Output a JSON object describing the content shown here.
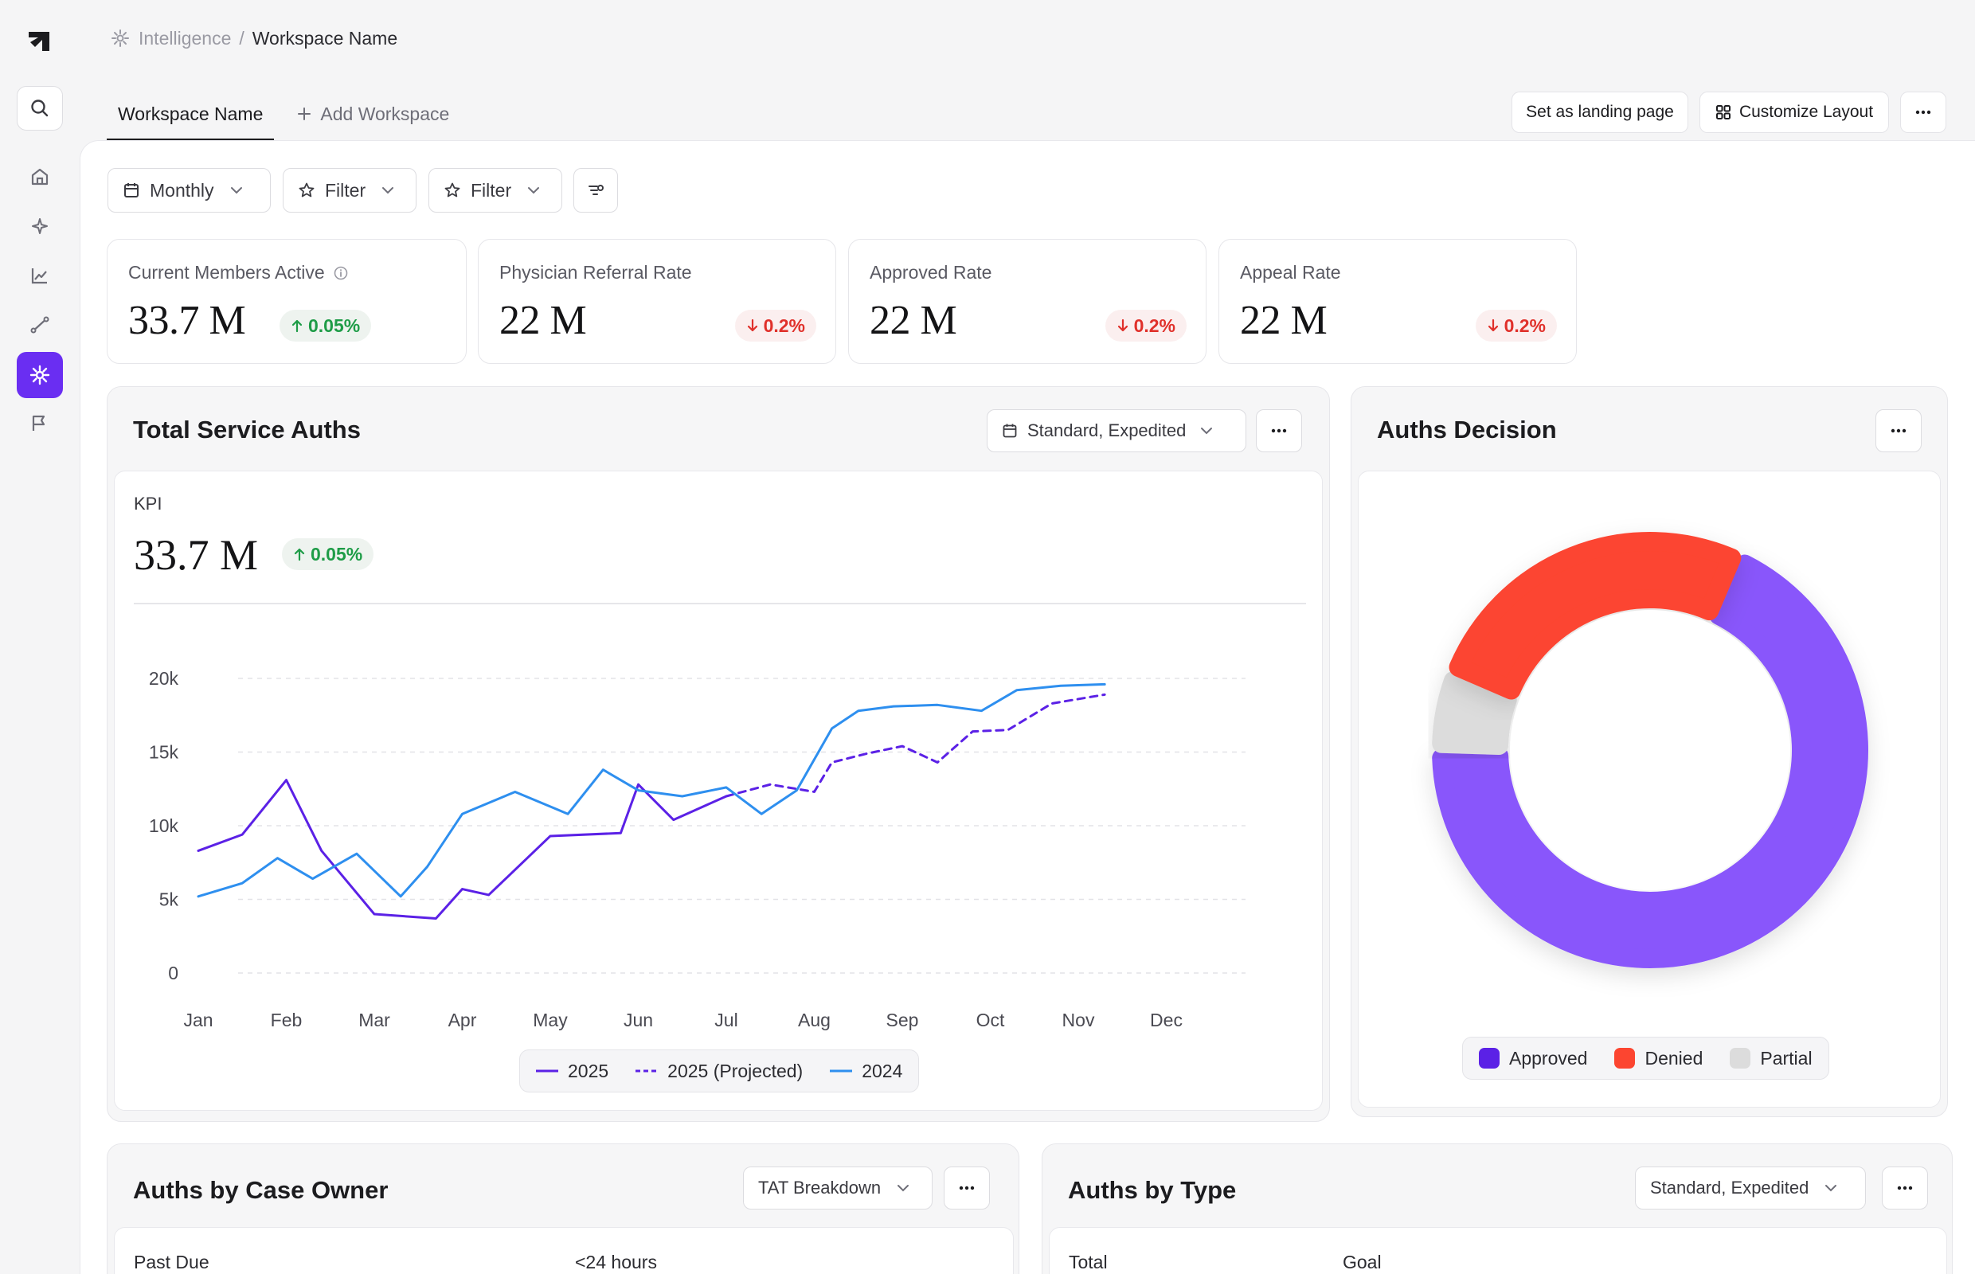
{
  "breadcrumb": {
    "section": "Intelligence",
    "separator": "/",
    "current": "Workspace Name"
  },
  "tabs": [
    {
      "label": "Workspace Name"
    },
    {
      "label": "Add Workspace"
    }
  ],
  "header_actions": {
    "landing": "Set as landing page",
    "customize": "Customize Layout"
  },
  "filters": {
    "period": "Monthly",
    "filter1": "Filter",
    "filter2": "Filter"
  },
  "kpis": [
    {
      "label": "Current Members Active",
      "value": "33.7 M",
      "change": "0.05%",
      "direction": "up"
    },
    {
      "label": "Physician Referral Rate",
      "value": "22 M",
      "change": "0.2%",
      "direction": "down"
    },
    {
      "label": "Approved Rate",
      "value": "22 M",
      "change": "0.2%",
      "direction": "down"
    },
    {
      "label": "Appeal Rate",
      "value": "22 M",
      "change": "0.2%",
      "direction": "down"
    }
  ],
  "service_auths": {
    "title": "Total Service Auths",
    "dropdown": "Standard, Expedited",
    "kpi_label": "KPI",
    "kpi_value": "33.7 M",
    "kpi_change": "0.05%"
  },
  "auths_decision": {
    "title": "Auths Decision"
  },
  "case_owner": {
    "title": "Auths by Case Owner",
    "dropdown": "TAT Breakdown",
    "columns": [
      "Past Due",
      "<24 hours"
    ]
  },
  "auths_type": {
    "title": "Auths by Type",
    "dropdown": "Standard, Expedited",
    "columns": [
      "Total",
      "Goal"
    ]
  },
  "colors": {
    "accent": "#6a2ef2",
    "series_2025": "#5b21e6",
    "series_2024": "#2e8fef",
    "approved": "#8957fb",
    "denied": "#fc4530",
    "partial": "#dcdcdc",
    "up": "#1e9c47",
    "down": "#e0312b"
  },
  "icons": {
    "sidebar": [
      "logo-icon",
      "search-icon",
      "home-icon",
      "sparkle-icon",
      "chart-icon",
      "route-icon",
      "intelligence-icon",
      "flag-icon"
    ]
  },
  "chart_data": [
    {
      "type": "line",
      "title": "",
      "xlabel": "",
      "ylabel": "",
      "categories": [
        "Jan",
        "Feb",
        "Mar",
        "Apr",
        "May",
        "Jun",
        "Jul",
        "Aug",
        "Sep",
        "Oct",
        "Nov",
        "Dec"
      ],
      "y_ticks": [
        "0",
        "5k",
        "10k",
        "15k",
        "20k"
      ],
      "ylim": [
        0,
        20000
      ],
      "grid": true,
      "legend_position": "bottom",
      "series": [
        {
          "name": "2025",
          "style": "solid",
          "color": "#5b21e6",
          "x": [
            1,
            1.5,
            2,
            2.4,
            3,
            3.7,
            4,
            4.3,
            5,
            5.8,
            6,
            6.4,
            7
          ],
          "values": [
            8300,
            9400,
            13100,
            8300,
            4000,
            3700,
            5700,
            5300,
            9300,
            9500,
            12800,
            10400,
            12000
          ]
        },
        {
          "name": "2025 (Projected)",
          "style": "dashed",
          "color": "#5b21e6",
          "x": [
            7,
            7.5,
            8,
            8.2,
            8.6,
            9,
            9.4,
            9.8,
            10.2,
            10.7,
            11.3
          ],
          "values": [
            12000,
            12800,
            12300,
            14300,
            14900,
            15400,
            14300,
            16400,
            16500,
            18300,
            18900
          ]
        },
        {
          "name": "2024",
          "style": "solid",
          "color": "#2e8fef",
          "x": [
            1,
            1.5,
            1.9,
            2.3,
            2.8,
            3.3,
            3.6,
            4,
            4.6,
            5.2,
            5.6,
            6,
            6.5,
            7,
            7.4,
            7.8,
            8.2,
            8.5,
            8.9,
            9.4,
            9.9,
            10.3,
            10.8,
            11.3
          ],
          "values": [
            5200,
            6100,
            7800,
            6400,
            8100,
            5200,
            7200,
            10800,
            12300,
            10800,
            13800,
            12400,
            12000,
            12600,
            10800,
            12400,
            16600,
            17800,
            18100,
            18200,
            17800,
            19200,
            19500,
            19600
          ]
        }
      ]
    },
    {
      "type": "pie",
      "donut": true,
      "title": "",
      "series": [
        {
          "name": "Approved",
          "value": 68,
          "color": "#8957fb"
        },
        {
          "name": "Partial",
          "value": 6,
          "color": "#dcdcdc"
        },
        {
          "name": "Denied",
          "value": 26,
          "color": "#fc4530"
        }
      ],
      "legend_position": "bottom"
    }
  ]
}
